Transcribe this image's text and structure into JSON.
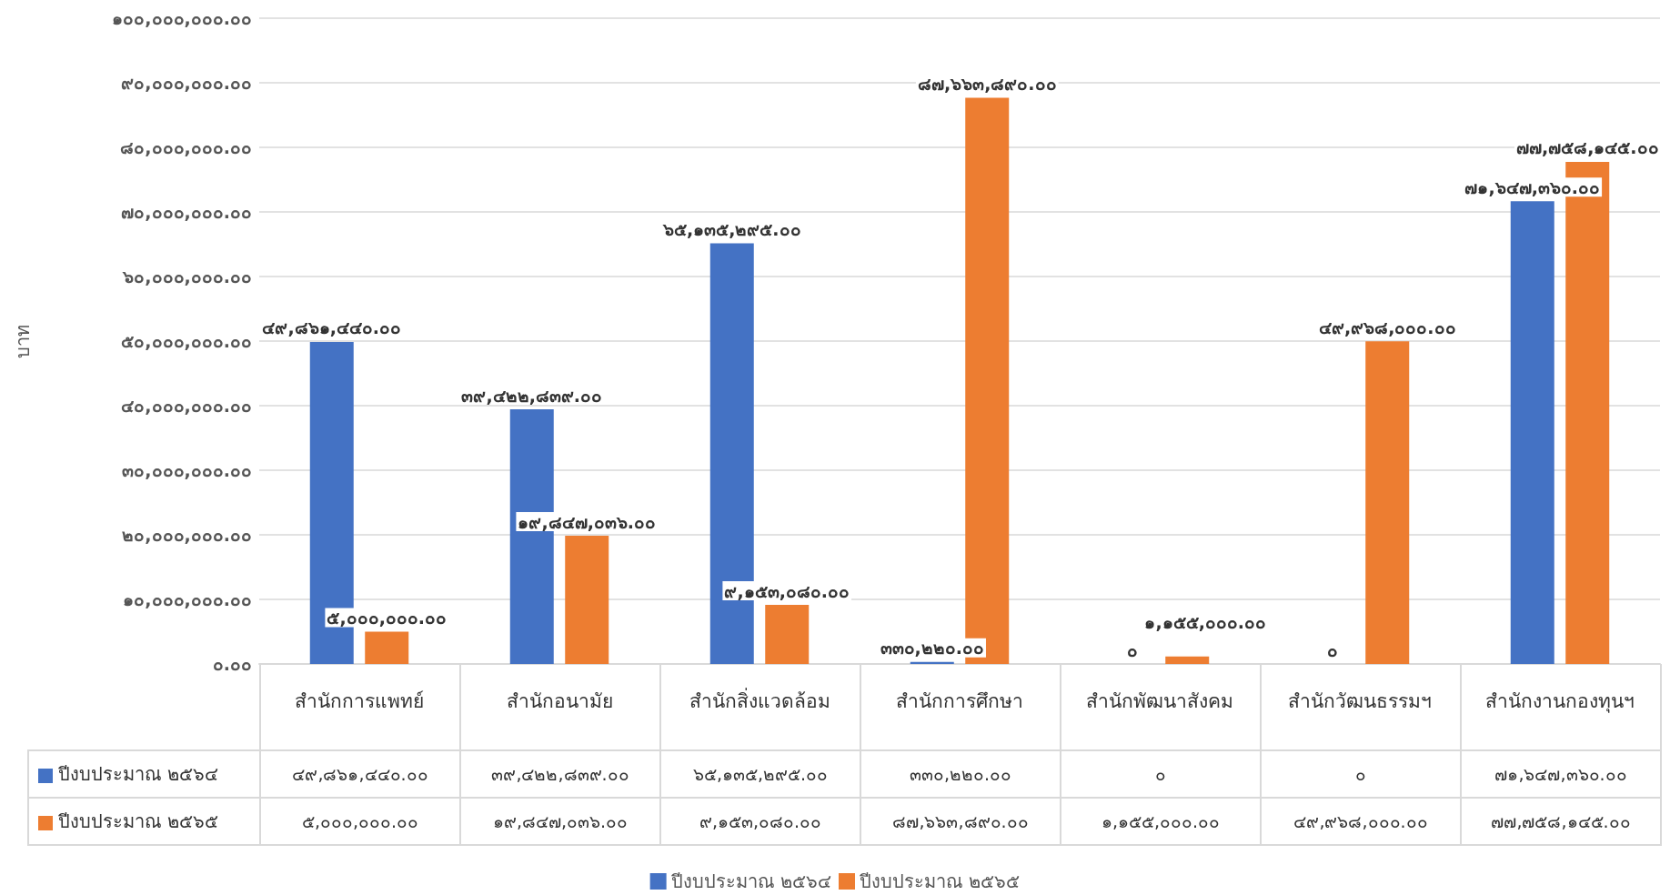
{
  "chart_data": {
    "type": "bar",
    "ylabel": "บาท",
    "categories": [
      "สำนักการแพทย์",
      "สำนักอนามัย",
      "สำนักสิ่งแวดล้อม",
      "สำนักการศึกษา",
      "สำนักพัฒนาสังคม",
      "สำนักวัฒนธรรมฯ",
      "สำนักงานกองทุนฯ"
    ],
    "series": [
      {
        "name": "ปีงบประมาณ ๒๕๖๔",
        "color": "#4472c4",
        "values": [
          49861440,
          39422839,
          65135295,
          330220,
          0,
          0,
          71647360
        ],
        "value_labels": [
          "๔๙,๘๖๑,๔๔๐.๐๐",
          "๓๙,๔๒๒,๘๓๙.๐๐",
          "๖๕,๑๓๕,๒๙๕.๐๐",
          "๓๓๐,๒๒๐.๐๐",
          "๐",
          "๐",
          "๗๑,๖๔๗,๓๖๐.๐๐"
        ]
      },
      {
        "name": "ปีงบประมาณ ๒๕๖๕",
        "color": "#ed7d31",
        "values": [
          5000000,
          19847036,
          9153080,
          87663890,
          1155000,
          49968000,
          77758145
        ],
        "value_labels": [
          "๕,๐๐๐,๐๐๐.๐๐",
          "๑๙,๘๔๗,๐๓๖.๐๐",
          "๙,๑๕๓,๐๘๐.๐๐",
          "๘๗,๖๖๓,๘๙๐.๐๐",
          "๑,๑๕๕,๐๐๐.๐๐",
          "๔๙,๙๖๘,๐๐๐.๐๐",
          "๗๗,๗๕๘,๑๔๕.๐๐"
        ]
      }
    ],
    "ylim": [
      0,
      100000000
    ],
    "yticks": [
      {
        "value": 0,
        "label": "๐.๐๐"
      },
      {
        "value": 10000000,
        "label": "๑๐,๐๐๐,๐๐๐.๐๐"
      },
      {
        "value": 20000000,
        "label": "๒๐,๐๐๐,๐๐๐.๐๐"
      },
      {
        "value": 30000000,
        "label": "๓๐,๐๐๐,๐๐๐.๐๐"
      },
      {
        "value": 40000000,
        "label": "๔๐,๐๐๐,๐๐๐.๐๐"
      },
      {
        "value": 50000000,
        "label": "๕๐,๐๐๐,๐๐๐.๐๐"
      },
      {
        "value": 60000000,
        "label": "๖๐,๐๐๐,๐๐๐.๐๐"
      },
      {
        "value": 70000000,
        "label": "๗๐,๐๐๐,๐๐๐.๐๐"
      },
      {
        "value": 80000000,
        "label": "๘๐,๐๐๐,๐๐๐.๐๐"
      },
      {
        "value": 90000000,
        "label": "๙๐,๐๐๐,๐๐๐.๐๐"
      },
      {
        "value": 100000000,
        "label": "๑๐๐,๐๐๐,๐๐๐.๐๐"
      }
    ],
    "grid": "y",
    "legend": "bottom"
  }
}
